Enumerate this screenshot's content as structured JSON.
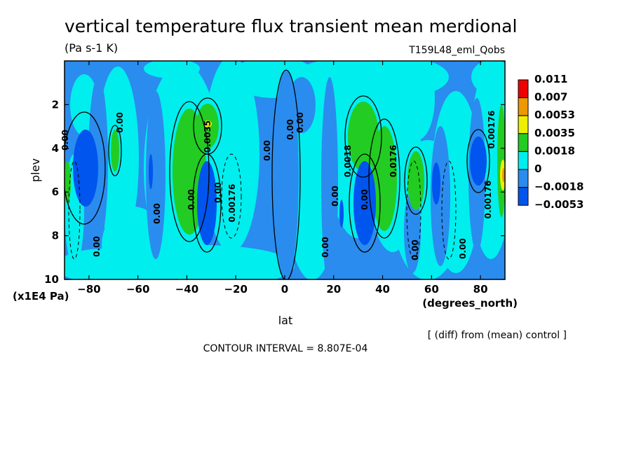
{
  "title": "vertical temperature flux transient mean merdional",
  "units": "(Pa s-1 K)",
  "run_label": "T159L48_eml_Qobs",
  "x_axis": {
    "label": "lat",
    "units": "(degrees_north)",
    "ticks": [
      "-80",
      "-60",
      "-40",
      "-20",
      "0",
      "20",
      "40",
      "60",
      "80"
    ]
  },
  "y_axis": {
    "label": "plev",
    "scale_note": "(x1E4 Pa)",
    "ticks": [
      "2",
      "4",
      "6",
      "8",
      "10"
    ]
  },
  "note": "[ (diff) from (mean) control ]",
  "contour_interval": "CONTOUR INTERVAL = 8.807E-04",
  "contour_labels": [
    "0.00",
    "0.00",
    "0.00",
    "0.00",
    "0.00",
    "0.00",
    "0.00",
    "0.00",
    "0.00",
    "0.00",
    "0.00",
    "0.00",
    "0.00",
    "0.00",
    "0.00176",
    "0.00176",
    "0.00176",
    "0.0176",
    "0.0018",
    "0.0035"
  ],
  "colors": {
    "level_neg2": "#0055ee",
    "level_neg1": "#2a8cee",
    "level_0": "#00eeee",
    "level_1": "#22cc22",
    "level_2": "#eeee00",
    "level_3": "#ee9900",
    "level_4": "#ee0000"
  },
  "chart_data": {
    "type": "heatmap",
    "title": "vertical temperature flux transient mean merdional",
    "xlabel": "lat",
    "ylabel": "plev",
    "xlim": [
      -90,
      90
    ],
    "ylim": [
      10,
      0
    ],
    "colorbar": {
      "labels": [
        "0.011",
        "0.007",
        "0.0053",
        "0.0035",
        "0.0018",
        "0",
        "-0.0018",
        "-0.0053"
      ],
      "colors": [
        "#ee0000",
        "#ee9900",
        "#eeee00",
        "#22cc22",
        "#00eeee",
        "#2a8cee",
        "#0055ee"
      ]
    },
    "features": [
      {
        "lat": -82,
        "plev": 4.8,
        "value": -0.0053
      },
      {
        "lat": -70,
        "plev": 4.5,
        "value": 0.0018
      },
      {
        "lat": -43,
        "plev": 4.5,
        "value": 0.0018
      },
      {
        "lat": -31,
        "plev": 2.9,
        "value": 0.0053
      },
      {
        "lat": -32,
        "plev": 6.5,
        "value": -0.0053
      },
      {
        "lat": 33,
        "plev": 3.0,
        "value": 0.0018
      },
      {
        "lat": 33,
        "plev": 6.5,
        "value": -0.0053
      },
      {
        "lat": 42,
        "plev": 5.2,
        "value": 0.0018
      },
      {
        "lat": 55,
        "plev": 5.3,
        "value": 0.0018
      },
      {
        "lat": 64,
        "plev": 6.0,
        "value": -0.0018
      },
      {
        "lat": 79,
        "plev": 5.0,
        "value": -0.0053
      },
      {
        "lat": 89,
        "plev": 4.2,
        "value": 0.0035
      }
    ]
  }
}
